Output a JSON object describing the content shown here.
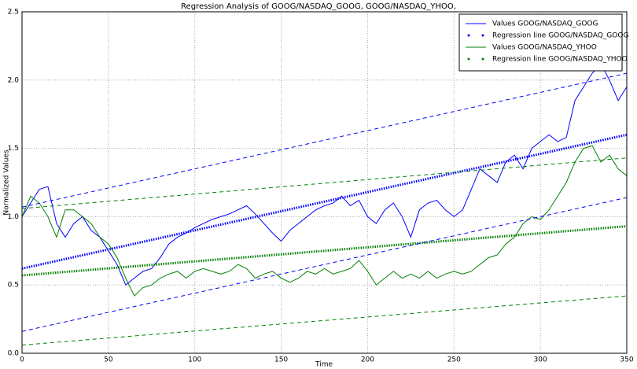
{
  "chart_data": {
    "type": "line",
    "title": "Regression Analysis of GOOG/NASDAQ_GOOG, GOOG/NASDAQ_YHOO,",
    "xlabel": "Time",
    "ylabel": "Normalized Values",
    "xlim": [
      0,
      350
    ],
    "ylim": [
      0,
      2.5
    ],
    "xticks": [
      0,
      50,
      100,
      150,
      200,
      250,
      300,
      350
    ],
    "yticks": [
      {
        "value": 0,
        "label": "0.0"
      },
      0.5,
      {
        "value": 1,
        "label": "1.0"
      },
      1.5,
      {
        "value": 2,
        "label": "2.0"
      },
      2.5
    ],
    "grid": true,
    "legend": "upper right",
    "series": [
      {
        "name": "Values GOOG/NASDAQ_GOOG",
        "color": "#0000ff",
        "style": "solid",
        "x": [
          0,
          5,
          10,
          15,
          20,
          25,
          30,
          35,
          40,
          45,
          50,
          55,
          60,
          65,
          70,
          75,
          80,
          85,
          90,
          95,
          100,
          105,
          110,
          115,
          120,
          125,
          130,
          135,
          140,
          145,
          150,
          155,
          160,
          165,
          170,
          175,
          180,
          185,
          190,
          195,
          200,
          205,
          210,
          215,
          220,
          225,
          230,
          235,
          240,
          245,
          250,
          255,
          260,
          265,
          270,
          275,
          280,
          285,
          290,
          295,
          300,
          305,
          310,
          315,
          320,
          325,
          330,
          335,
          340,
          345,
          350
        ],
        "values": [
          1.0,
          1.1,
          1.2,
          1.22,
          0.95,
          0.85,
          0.95,
          1.0,
          0.9,
          0.85,
          0.75,
          0.65,
          0.5,
          0.55,
          0.6,
          0.62,
          0.7,
          0.8,
          0.85,
          0.88,
          0.92,
          0.95,
          0.98,
          1.0,
          1.02,
          1.05,
          1.08,
          1.02,
          0.95,
          0.88,
          0.82,
          0.9,
          0.95,
          1.0,
          1.05,
          1.08,
          1.1,
          1.15,
          1.08,
          1.12,
          1.0,
          0.95,
          1.05,
          1.1,
          1.0,
          0.85,
          1.05,
          1.1,
          1.12,
          1.05,
          1.0,
          1.05,
          1.2,
          1.35,
          1.3,
          1.25,
          1.4,
          1.45,
          1.35,
          1.5,
          1.55,
          1.6,
          1.55,
          1.58,
          1.85,
          1.95,
          2.05,
          2.12,
          2.0,
          1.85,
          1.95
        ]
      },
      {
        "name": "Regression line GOOG/NASDAQ_GOOG",
        "color": "#0000ff",
        "style": "dots",
        "x": [
          0,
          350
        ],
        "values": [
          0.62,
          1.6
        ]
      },
      {
        "name": "Values GOOG/NASDAQ_YHOO",
        "color": "#008000",
        "style": "solid",
        "x": [
          0,
          5,
          10,
          15,
          20,
          25,
          30,
          35,
          40,
          45,
          50,
          55,
          60,
          65,
          70,
          75,
          80,
          85,
          90,
          95,
          100,
          105,
          110,
          115,
          120,
          125,
          130,
          135,
          140,
          145,
          150,
          155,
          160,
          165,
          170,
          175,
          180,
          185,
          190,
          195,
          200,
          205,
          210,
          215,
          220,
          225,
          230,
          235,
          240,
          245,
          250,
          255,
          260,
          265,
          270,
          275,
          280,
          285,
          290,
          295,
          300,
          305,
          310,
          315,
          320,
          325,
          330,
          335,
          340,
          345,
          350
        ],
        "values": [
          1.0,
          1.15,
          1.1,
          1.0,
          0.85,
          1.05,
          1.05,
          1.0,
          0.95,
          0.85,
          0.8,
          0.7,
          0.55,
          0.42,
          0.48,
          0.5,
          0.55,
          0.58,
          0.6,
          0.55,
          0.6,
          0.62,
          0.6,
          0.58,
          0.6,
          0.65,
          0.62,
          0.55,
          0.58,
          0.6,
          0.55,
          0.52,
          0.55,
          0.6,
          0.58,
          0.62,
          0.58,
          0.6,
          0.62,
          0.68,
          0.6,
          0.5,
          0.55,
          0.6,
          0.55,
          0.58,
          0.55,
          0.6,
          0.55,
          0.58,
          0.6,
          0.58,
          0.6,
          0.65,
          0.7,
          0.72,
          0.8,
          0.85,
          0.95,
          1.0,
          0.98,
          1.05,
          1.15,
          1.25,
          1.4,
          1.5,
          1.52,
          1.4,
          1.45,
          1.35,
          1.3
        ]
      },
      {
        "name": "Regression line GOOG/NASDAQ_YHOO",
        "color": "#008000",
        "style": "dots",
        "x": [
          0,
          350
        ],
        "values": [
          0.57,
          0.93
        ]
      },
      {
        "color": "#0000ff",
        "style": "dashed",
        "x": [
          0,
          350
        ],
        "values": [
          1.07,
          2.05
        ]
      },
      {
        "color": "#0000ff",
        "style": "dashed",
        "x": [
          0,
          350
        ],
        "values": [
          0.16,
          1.14
        ]
      },
      {
        "color": "#008000",
        "style": "dashed",
        "x": [
          0,
          350
        ],
        "values": [
          1.06,
          1.43
        ]
      },
      {
        "color": "#008000",
        "style": "dashed",
        "x": [
          0,
          350
        ],
        "values": [
          0.06,
          0.42
        ]
      }
    ]
  }
}
